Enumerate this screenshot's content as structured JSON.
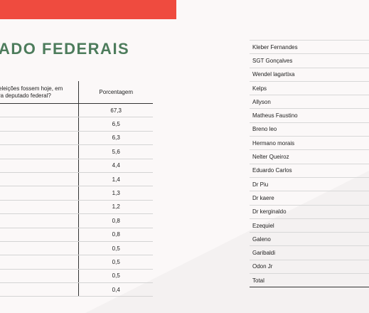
{
  "title": "ADO FEDERAIS",
  "left_table": {
    "header_question": "eleições fossem hoje, em\nra deputado federal?",
    "header_percent": "Porcentagem",
    "values": [
      "67,3",
      "6,5",
      "6,3",
      "5,6",
      "4,4",
      "1,4",
      "1,3",
      "1,2",
      "0,8",
      "0,8",
      "0,5",
      "0,5",
      "0,5",
      "0,4"
    ]
  },
  "right_table": {
    "names": [
      "Kleber Fernandes",
      "SGT Gonçalves",
      "Wendel lagartixa",
      "Kelps",
      "Allyson",
      "Matheus Faustino",
      "Breno leo",
      "Hermano morais",
      "Nelter Queiroz",
      "Eduardo Carlos",
      "Dr Piu",
      "Dr kaere",
      "Dr kerginaldo",
      "Ezequiel",
      "Galeno",
      "Garibaldi",
      "Odon Jr",
      "Total"
    ]
  }
}
